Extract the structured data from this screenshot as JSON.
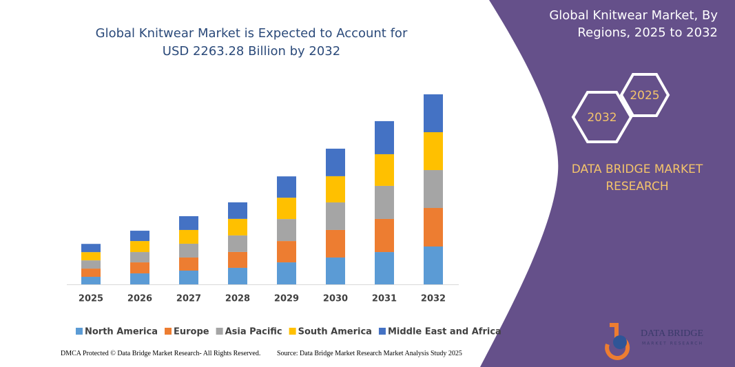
{
  "chart_data": {
    "type": "stacked-bar",
    "title": "Global Knitwear Market is Expected to Account for USD 2263.28 Billion by 2032",
    "categories": [
      "2025",
      "2026",
      "2027",
      "2028",
      "2029",
      "2030",
      "2031",
      "2032"
    ],
    "series": [
      {
        "name": "North America",
        "color": "#5b9bd5",
        "values": [
          90,
          131,
          164,
          197,
          262,
          320,
          385,
          451
        ]
      },
      {
        "name": "Europe",
        "color": "#ed7d31",
        "values": [
          98,
          131,
          156,
          189,
          254,
          328,
          394,
          459
        ]
      },
      {
        "name": "Asia Pacific",
        "color": "#a5a5a5",
        "values": [
          98,
          123,
          164,
          197,
          262,
          328,
          394,
          451
        ]
      },
      {
        "name": "South America",
        "color": "#ffc000",
        "values": [
          98,
          131,
          164,
          197,
          254,
          312,
          377,
          451
        ]
      },
      {
        "name": "Middle East and Africa",
        "color": "#4472c4",
        "values": [
          98,
          123,
          164,
          197,
          254,
          328,
          394,
          451
        ]
      }
    ],
    "legend": "bottom"
  },
  "panel": {
    "title": "Global Knitwear Market, By Regions, 2025 to 2032",
    "badges": [
      "2025",
      "2032"
    ],
    "brand": "DATA BRIDGE MARKET RESEARCH",
    "logo": {
      "name": "DATA BRIDGE",
      "tagline": "MARKET RESEARCH"
    }
  },
  "footer": {
    "notice": "DMCA Protected © Data Bridge Market Research- All Rights Reserved.",
    "source": "Source: Data Bridge Market Research Market Analysis Study 2025"
  }
}
